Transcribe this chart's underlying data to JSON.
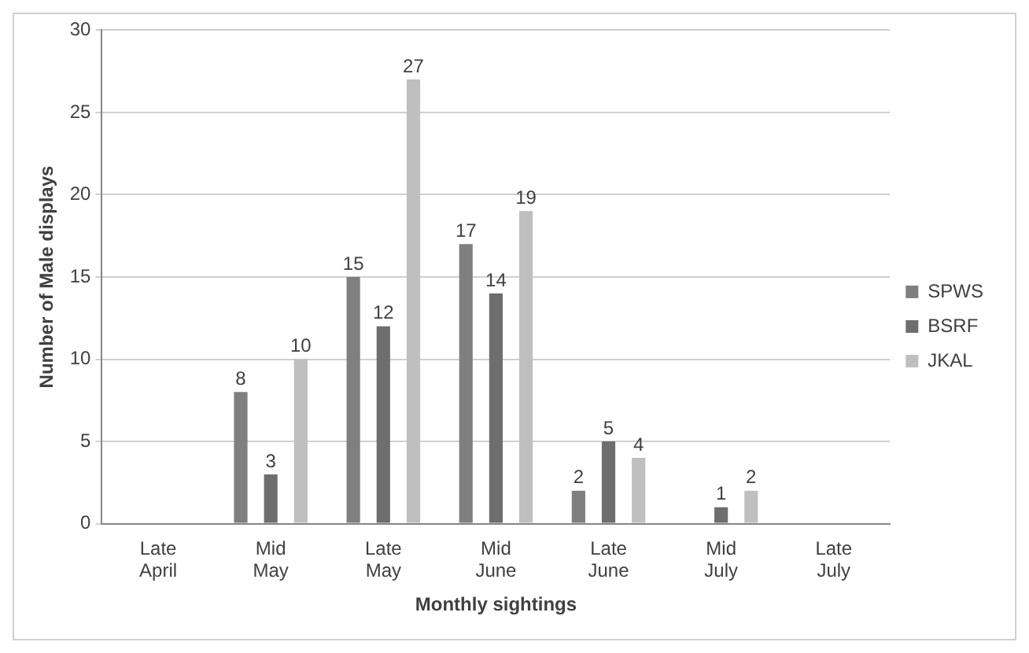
{
  "chart_data": {
    "type": "bar",
    "xlabel": "Monthly sightings",
    "ylabel": "Number of Male displays",
    "categories": [
      "Late April",
      "Mid May",
      "Late May",
      "Mid June",
      "Late June",
      "Mid July",
      "Late July"
    ],
    "series": [
      {
        "name": "SPWS",
        "color": "#7f7f7f",
        "values": [
          0,
          8,
          15,
          17,
          2,
          0,
          0
        ],
        "value_labels": [
          null,
          "8",
          "15",
          "17",
          "2",
          null,
          null
        ]
      },
      {
        "name": "BSRF",
        "color": "#6e6e6e",
        "values": [
          0,
          3,
          12,
          14,
          5,
          1,
          0
        ],
        "value_labels": [
          null,
          "3",
          "12",
          "14",
          "5",
          "1",
          null
        ]
      },
      {
        "name": "JKAL",
        "color": "#bfbfbf",
        "values": [
          0,
          10,
          27,
          19,
          4,
          2,
          0
        ],
        "value_labels": [
          null,
          "10",
          "27",
          "19",
          "4",
          "2",
          null
        ]
      }
    ],
    "ylim": [
      0,
      30
    ],
    "yticks": [
      0,
      5,
      10,
      15,
      20,
      25,
      30
    ],
    "grid": "y",
    "legend": "right"
  }
}
